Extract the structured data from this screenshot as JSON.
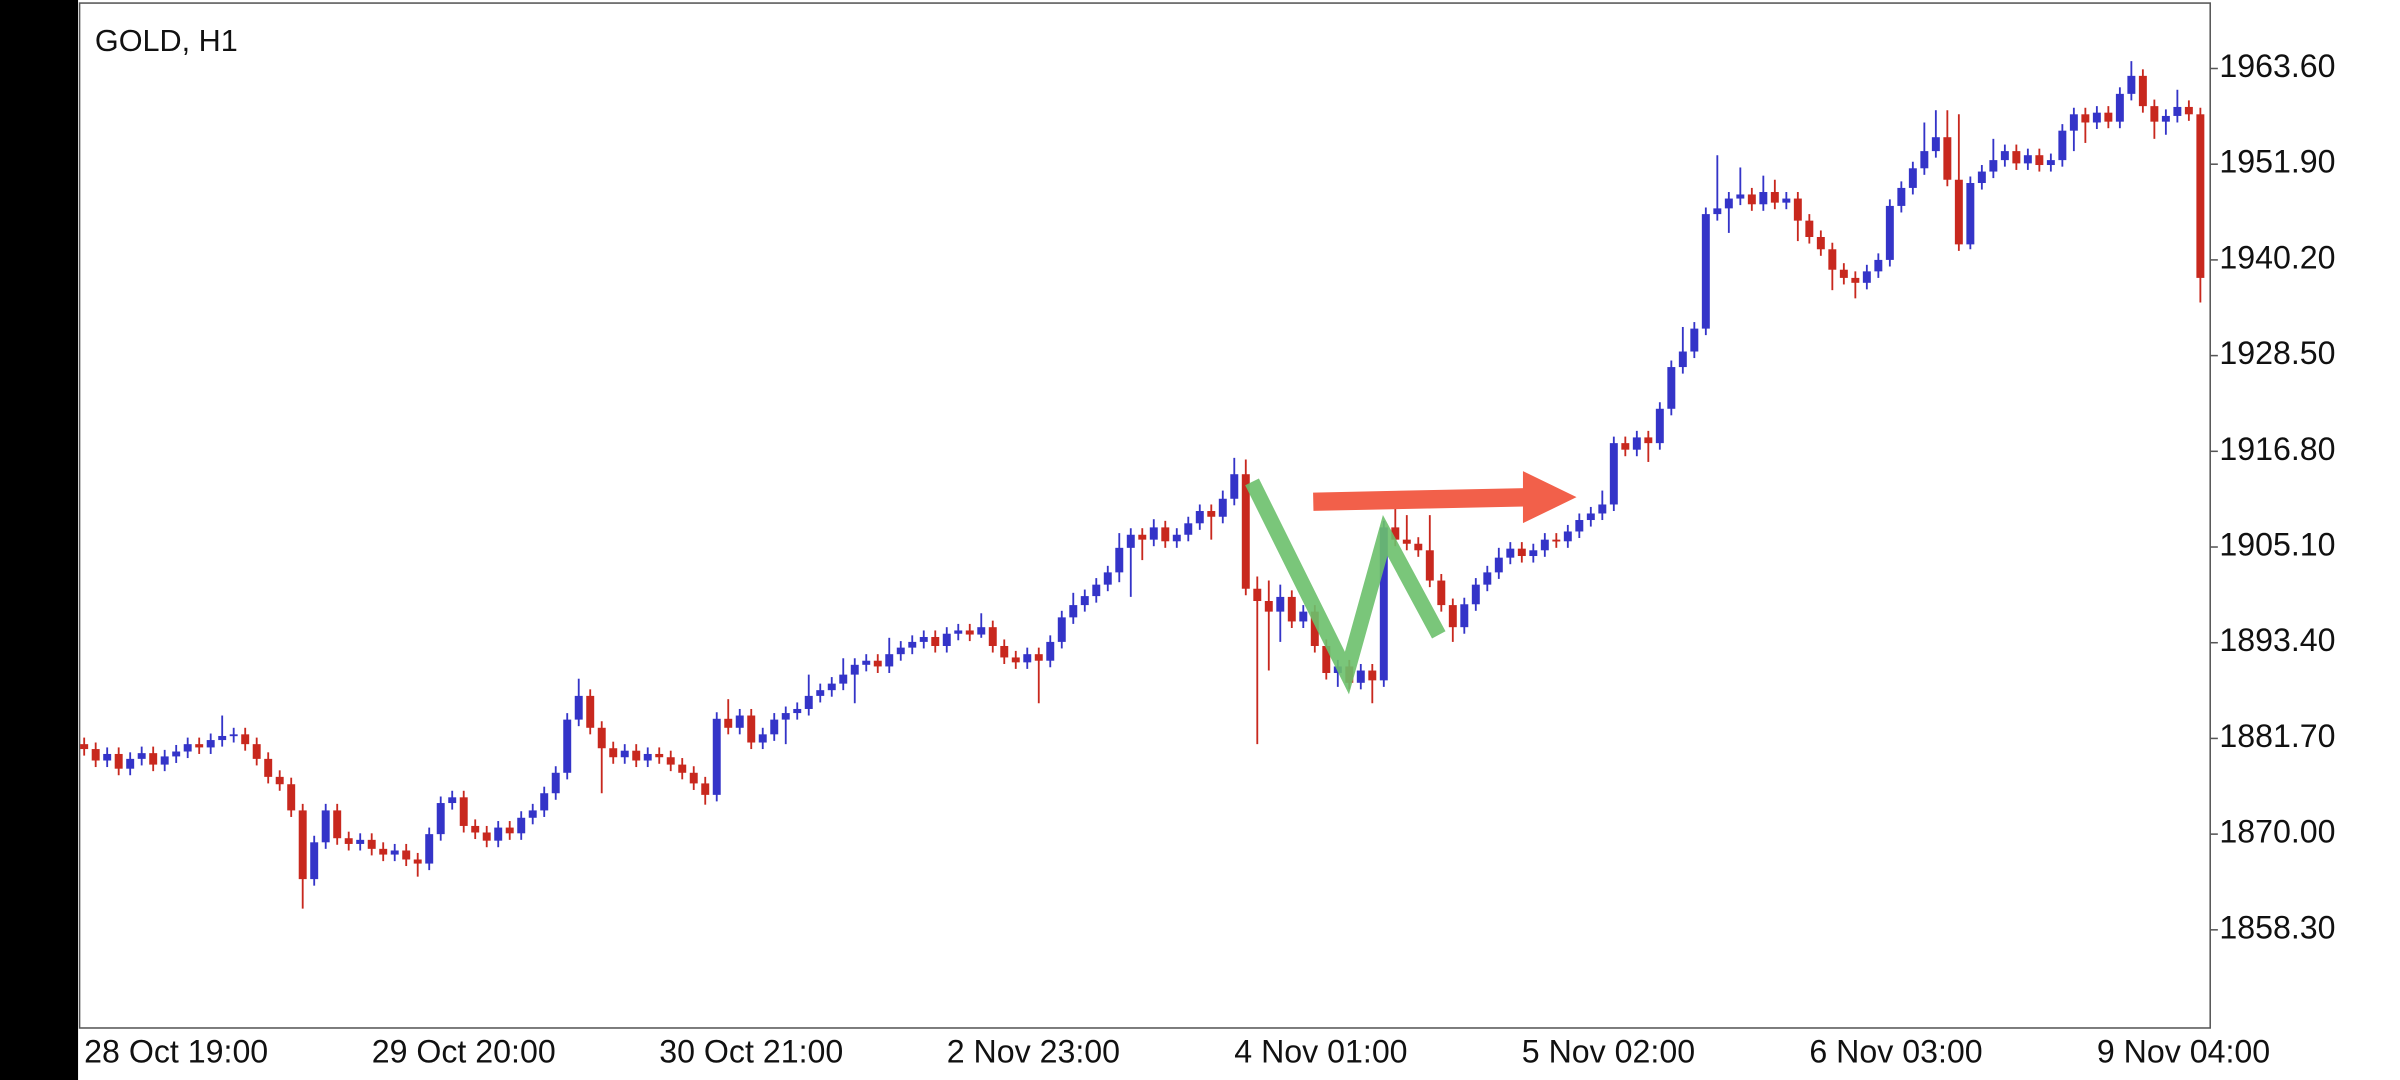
{
  "chart_data": {
    "type": "candlestick",
    "title": "GOLD, H1",
    "up_color": "#3434c8",
    "down_color": "#c8281e",
    "ylim": [
      1846.3,
      1971.6
    ],
    "yticks": [
      {
        "value": 1858.3,
        "label": "1858.30"
      },
      {
        "value": 1870,
        "label": "1870.00"
      },
      {
        "value": 1881.7,
        "label": "1881.70"
      },
      {
        "value": 1893.4,
        "label": "1893.40"
      },
      {
        "value": 1905.1,
        "label": "1905.10"
      },
      {
        "value": 1916.8,
        "label": "1916.80"
      },
      {
        "value": 1928.5,
        "label": "1928.50"
      },
      {
        "value": 1940.2,
        "label": "1940.20"
      },
      {
        "value": 1951.9,
        "label": "1951.90"
      },
      {
        "value": 1963.6,
        "label": "1963.60"
      }
    ],
    "categories": [
      "28 Oct 19:00",
      null,
      null,
      null,
      null,
      null,
      null,
      null,
      null,
      null,
      null,
      null,
      null,
      null,
      null,
      null,
      null,
      null,
      null,
      null,
      null,
      null,
      null,
      null,
      null,
      "29 Oct 20:00",
      null,
      null,
      null,
      null,
      null,
      null,
      null,
      null,
      null,
      null,
      null,
      null,
      null,
      null,
      null,
      null,
      null,
      null,
      null,
      null,
      null,
      null,
      null,
      null,
      "30 Oct 21:00",
      null,
      null,
      null,
      null,
      null,
      null,
      null,
      null,
      null,
      null,
      null,
      null,
      null,
      null,
      null,
      null,
      null,
      null,
      null,
      null,
      null,
      null,
      null,
      null,
      "2 Nov 23:00",
      null,
      null,
      null,
      null,
      null,
      null,
      null,
      null,
      null,
      null,
      null,
      null,
      null,
      null,
      null,
      null,
      null,
      null,
      null,
      null,
      null,
      null,
      null,
      null,
      "4 Nov 01:00",
      null,
      null,
      null,
      null,
      null,
      null,
      null,
      null,
      null,
      null,
      null,
      null,
      null,
      null,
      null,
      null,
      null,
      null,
      null,
      null,
      null,
      null,
      null,
      null,
      "5 Nov 02:00",
      null,
      null,
      null,
      null,
      null,
      null,
      null,
      null,
      null,
      null,
      null,
      null,
      null,
      null,
      null,
      null,
      null,
      null,
      null,
      null,
      null,
      null,
      null,
      null,
      "6 Nov 03:00",
      null,
      null,
      null,
      null,
      null,
      null,
      null,
      null,
      null,
      null,
      null,
      null,
      null,
      null,
      null,
      null,
      null,
      null,
      null,
      null,
      null,
      null,
      null,
      null,
      "9 Nov 04:00",
      null,
      null,
      null,
      null,
      null,
      null,
      null,
      null,
      null
    ],
    "open": [
      1881.0,
      1880.4,
      1879.0,
      1879.8,
      1878.0,
      1879.2,
      1879.9,
      1878.5,
      1879.5,
      1880.1,
      1881.0,
      1880.6,
      1881.5,
      1882.0,
      1882.2,
      1881.0,
      1879.2,
      1877.0,
      1876.1,
      1872.9,
      1864.5,
      1869.0,
      1872.9,
      1869.5,
      1868.8,
      1869.3,
      1868.2,
      1867.5,
      1868.0,
      1866.9,
      1866.4,
      1870.0,
      1873.8,
      1874.5,
      1871.0,
      1870.2,
      1869.2,
      1870.8,
      1870.1,
      1872.0,
      1872.9,
      1875.0,
      1877.5,
      1884.0,
      1886.9,
      1883.0,
      1880.5,
      1879.4,
      1880.2,
      1879.0,
      1879.8,
      1879.4,
      1878.5,
      1877.5,
      1876.2,
      1874.8,
      1884.1,
      1883.0,
      1884.5,
      1881.2,
      1882.2,
      1884.0,
      1884.8,
      1885.3,
      1886.9,
      1887.6,
      1888.4,
      1889.5,
      1890.7,
      1891.2,
      1890.5,
      1892.0,
      1892.8,
      1893.5,
      1894.1,
      1893.0,
      1894.5,
      1894.9,
      1894.4,
      1895.3,
      1893.0,
      1891.6,
      1891.0,
      1892.0,
      1891.2,
      1893.5,
      1896.5,
      1898.0,
      1899.1,
      1900.5,
      1902.0,
      1905.0,
      1906.6,
      1906.0,
      1907.5,
      1905.8,
      1906.6,
      1908.0,
      1909.5,
      1908.8,
      1911.0,
      1914.0,
      1900.0,
      1898.5,
      1897.2,
      1899.0,
      1896.0,
      1897.2,
      1893.0,
      1889.7,
      1890.5,
      1888.5,
      1890.0,
      1888.8,
      1907.5,
      1906.0,
      1905.5,
      1904.7,
      1901.0,
      1898.0,
      1895.3,
      1898.1,
      1900.5,
      1902.0,
      1903.8,
      1904.9,
      1904.0,
      1904.7,
      1906.0,
      1905.8,
      1907.0,
      1908.4,
      1909.2,
      1910.3,
      1917.8,
      1917.0,
      1918.5,
      1917.8,
      1922.0,
      1927.1,
      1929.0,
      1931.8,
      1945.8,
      1946.5,
      1947.7,
      1948.2,
      1947.0,
      1948.5,
      1947.2,
      1947.7,
      1945.0,
      1943.0,
      1941.5,
      1939.0,
      1938.0,
      1937.4,
      1938.8,
      1940.2,
      1946.8,
      1949.0,
      1951.4,
      1953.5,
      1955.2,
      1950.0,
      1942.1,
      1949.6,
      1951.0,
      1952.4,
      1953.5,
      1952.0,
      1953.0,
      1951.8,
      1952.4,
      1956.0,
      1958.0,
      1957.0,
      1958.2,
      1957.1,
      1960.5,
      1962.7,
      1959.0,
      1957.1,
      1957.8,
      1958.9,
      1958.0
    ],
    "high": [
      1881.8,
      1881.2,
      1880.6,
      1880.6,
      1880.0,
      1880.7,
      1880.7,
      1880.3,
      1880.9,
      1881.8,
      1881.8,
      1882.3,
      1884.5,
      1883.0,
      1883.0,
      1881.8,
      1880.0,
      1877.8,
      1876.9,
      1873.7,
      1869.8,
      1873.7,
      1873.7,
      1870.3,
      1870.1,
      1870.1,
      1869.0,
      1868.8,
      1868.8,
      1867.7,
      1870.8,
      1874.6,
      1875.3,
      1875.3,
      1871.8,
      1871.0,
      1871.6,
      1871.6,
      1872.8,
      1873.7,
      1875.8,
      1878.3,
      1884.8,
      1889.0,
      1887.7,
      1883.8,
      1881.3,
      1881.0,
      1881.0,
      1880.6,
      1880.6,
      1880.2,
      1879.3,
      1878.3,
      1877.0,
      1884.9,
      1886.5,
      1885.3,
      1885.3,
      1883.0,
      1884.8,
      1885.6,
      1886.1,
      1889.5,
      1888.4,
      1889.2,
      1891.5,
      1891.5,
      1892.0,
      1892.0,
      1894.0,
      1893.6,
      1894.3,
      1894.9,
      1894.9,
      1895.3,
      1895.7,
      1895.7,
      1897.0,
      1896.1,
      1893.8,
      1892.4,
      1892.8,
      1892.8,
      1894.3,
      1897.3,
      1899.5,
      1899.9,
      1901.3,
      1902.8,
      1906.8,
      1907.4,
      1907.4,
      1908.5,
      1908.3,
      1907.4,
      1908.8,
      1910.3,
      1910.3,
      1912.0,
      1916.0,
      1915.8,
      1901.5,
      1901.0,
      1900.5,
      1899.8,
      1898.0,
      1898.0,
      1893.8,
      1891.3,
      1891.3,
      1890.8,
      1890.8,
      1908.3,
      1910.5,
      1909.0,
      1906.3,
      1909.0,
      1901.8,
      1898.8,
      1898.9,
      1901.3,
      1902.8,
      1905.0,
      1905.7,
      1905.7,
      1905.5,
      1906.8,
      1906.8,
      1907.8,
      1909.2,
      1910.0,
      1912.0,
      1918.6,
      1918.6,
      1919.3,
      1919.3,
      1922.8,
      1927.9,
      1932.0,
      1932.6,
      1946.6,
      1953.0,
      1948.5,
      1951.5,
      1949.0,
      1950.5,
      1950.0,
      1948.5,
      1948.5,
      1945.8,
      1943.8,
      1942.3,
      1939.8,
      1938.8,
      1939.6,
      1941.0,
      1947.6,
      1949.8,
      1952.2,
      1957.0,
      1958.5,
      1958.5,
      1958.0,
      1950.4,
      1951.8,
      1955.0,
      1954.3,
      1954.3,
      1953.8,
      1953.8,
      1953.2,
      1956.8,
      1958.8,
      1958.8,
      1959.0,
      1959.0,
      1961.3,
      1964.5,
      1963.5,
      1959.8,
      1958.6,
      1961.0,
      1959.7,
      1958.8
    ],
    "low": [
      1879.6,
      1878.2,
      1878.2,
      1877.2,
      1877.2,
      1878.4,
      1877.7,
      1877.7,
      1878.7,
      1879.3,
      1879.8,
      1879.8,
      1880.7,
      1881.2,
      1880.2,
      1878.4,
      1876.2,
      1875.3,
      1872.1,
      1860.9,
      1863.7,
      1868.2,
      1868.7,
      1868.0,
      1868.0,
      1867.4,
      1866.7,
      1866.7,
      1866.1,
      1864.8,
      1865.6,
      1869.2,
      1873.0,
      1870.2,
      1869.4,
      1868.4,
      1868.4,
      1869.3,
      1869.3,
      1871.2,
      1872.1,
      1874.2,
      1876.7,
      1883.2,
      1882.2,
      1875.0,
      1878.6,
      1878.6,
      1878.2,
      1878.2,
      1878.6,
      1877.7,
      1876.7,
      1875.4,
      1873.6,
      1874.0,
      1882.2,
      1882.2,
      1880.4,
      1880.4,
      1881.4,
      1881.0,
      1884.0,
      1884.5,
      1886.1,
      1886.8,
      1887.6,
      1886.0,
      1889.9,
      1889.7,
      1889.7,
      1891.2,
      1892.0,
      1892.7,
      1892.2,
      1892.2,
      1893.7,
      1893.6,
      1894.0,
      1892.2,
      1890.8,
      1890.2,
      1890.2,
      1886.0,
      1890.4,
      1892.7,
      1895.7,
      1897.2,
      1898.3,
      1899.7,
      1900.8,
      1899.0,
      1903.5,
      1905.2,
      1905.0,
      1905.0,
      1905.8,
      1907.2,
      1906.0,
      1908.0,
      1910.2,
      1899.2,
      1881.0,
      1890.0,
      1893.5,
      1895.2,
      1895.2,
      1892.2,
      1888.9,
      1888.0,
      1887.7,
      1887.7,
      1886.0,
      1888.0,
      1905.2,
      1904.7,
      1903.9,
      1900.2,
      1897.2,
      1893.5,
      1894.5,
      1897.3,
      1899.7,
      1901.2,
      1903.0,
      1903.2,
      1903.2,
      1903.9,
      1905.0,
      1905.0,
      1906.2,
      1907.6,
      1908.4,
      1909.5,
      1916.2,
      1916.2,
      1915.5,
      1917.0,
      1921.2,
      1926.3,
      1928.2,
      1931.0,
      1945.0,
      1943.5,
      1946.9,
      1946.2,
      1946.2,
      1946.4,
      1946.4,
      1942.5,
      1942.2,
      1940.7,
      1936.5,
      1937.2,
      1935.5,
      1936.6,
      1938.0,
      1939.4,
      1946.0,
      1948.2,
      1950.6,
      1952.7,
      1949.2,
      1941.3,
      1941.5,
      1948.8,
      1950.2,
      1951.6,
      1951.2,
      1951.2,
      1951.0,
      1951.0,
      1951.6,
      1953.5,
      1954.5,
      1956.2,
      1956.3,
      1956.3,
      1959.7,
      1958.2,
      1955.0,
      1955.5,
      1957.0,
      1957.2,
      1935.0
    ],
    "close": [
      1880.4,
      1879.0,
      1879.8,
      1878.0,
      1879.2,
      1879.9,
      1878.5,
      1879.5,
      1880.1,
      1881.0,
      1880.6,
      1881.5,
      1882.0,
      1882.2,
      1881.0,
      1879.2,
      1877.0,
      1876.1,
      1872.9,
      1864.5,
      1869.0,
      1872.9,
      1869.5,
      1868.8,
      1869.3,
      1868.2,
      1867.5,
      1868.0,
      1866.9,
      1866.4,
      1870.0,
      1873.8,
      1874.5,
      1871.0,
      1870.2,
      1869.2,
      1870.8,
      1870.1,
      1872.0,
      1872.9,
      1875.0,
      1877.5,
      1884.0,
      1886.9,
      1883.0,
      1880.5,
      1879.4,
      1880.2,
      1879.0,
      1879.8,
      1879.4,
      1878.5,
      1877.5,
      1876.2,
      1874.8,
      1884.1,
      1883.0,
      1884.5,
      1881.2,
      1882.2,
      1884.0,
      1884.8,
      1885.3,
      1886.9,
      1887.6,
      1888.4,
      1889.5,
      1890.7,
      1891.2,
      1890.5,
      1892.0,
      1892.8,
      1893.5,
      1894.1,
      1893.0,
      1894.5,
      1894.9,
      1894.4,
      1895.3,
      1893.0,
      1891.6,
      1891.0,
      1892.0,
      1891.2,
      1893.5,
      1896.5,
      1898.0,
      1899.1,
      1900.5,
      1902.0,
      1905.0,
      1906.6,
      1906.0,
      1907.5,
      1905.8,
      1906.6,
      1908.0,
      1909.5,
      1908.8,
      1911.0,
      1914.0,
      1900.0,
      1898.5,
      1897.2,
      1899.0,
      1896.0,
      1897.2,
      1893.0,
      1889.7,
      1890.5,
      1888.5,
      1890.0,
      1888.8,
      1907.5,
      1906.0,
      1905.5,
      1904.7,
      1901.0,
      1898.0,
      1895.3,
      1898.1,
      1900.5,
      1902.0,
      1903.8,
      1904.9,
      1904.0,
      1904.7,
      1906.0,
      1905.8,
      1907.0,
      1908.4,
      1909.2,
      1910.3,
      1917.8,
      1917.0,
      1918.5,
      1917.8,
      1922.0,
      1927.1,
      1929.0,
      1931.8,
      1945.8,
      1946.5,
      1947.7,
      1948.2,
      1947.0,
      1948.5,
      1947.2,
      1947.7,
      1945.0,
      1943.0,
      1941.5,
      1939.0,
      1938.0,
      1937.4,
      1938.8,
      1940.2,
      1946.8,
      1949.0,
      1951.4,
      1953.5,
      1955.2,
      1950.0,
      1942.1,
      1949.6,
      1951.0,
      1952.4,
      1953.5,
      1952.0,
      1953.0,
      1951.8,
      1952.4,
      1956.0,
      1958.0,
      1957.0,
      1958.2,
      1957.1,
      1960.5,
      1962.7,
      1959.0,
      1957.1,
      1957.8,
      1958.9,
      1958.0,
      1938.0
    ]
  }
}
